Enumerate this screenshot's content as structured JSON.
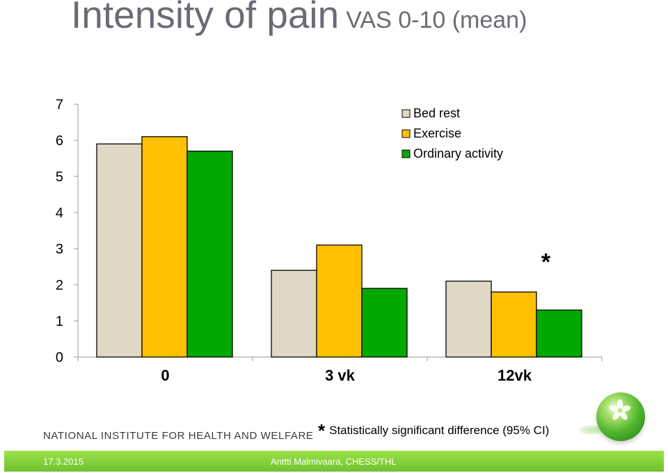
{
  "title": {
    "main": "Intensity of pain",
    "sub": "VAS 0-10 (mean)"
  },
  "colors": {
    "bed_rest": "#e0d8c4",
    "exercise": "#ffc000",
    "ordinary_activity": "#00a800",
    "title": "#6b6b76",
    "footer_green": "#7fce36"
  },
  "chart_data": {
    "type": "bar",
    "title": "Intensity of pain VAS 0-10 (mean)",
    "categories": [
      "0",
      "3 vk",
      "12vk"
    ],
    "series": [
      {
        "name": "Bed rest",
        "values": [
          5.9,
          2.4,
          2.1
        ]
      },
      {
        "name": "Exercise",
        "values": [
          6.1,
          3.1,
          1.8
        ]
      },
      {
        "name": "Ordinary activity",
        "values": [
          5.7,
          1.9,
          1.3
        ]
      }
    ],
    "y_ticks": [
      "0",
      "1",
      "2",
      "3",
      "4",
      "5",
      "6",
      "7"
    ],
    "ylim": [
      0,
      7
    ],
    "xlabel": "",
    "ylabel": "",
    "legend_position": "top-right",
    "annotations": [
      {
        "text": "*",
        "category": "12vk",
        "value": 2.8
      }
    ]
  },
  "footnote": {
    "star": "*",
    "text": "Statistically significant difference (95% CI)"
  },
  "institute": "NATIONAL INSTITUTE FOR HEALTH AND WELFARE",
  "footer": {
    "date": "17.3.2015",
    "author": "Anttti Malmivaara, CHESS/THL"
  }
}
